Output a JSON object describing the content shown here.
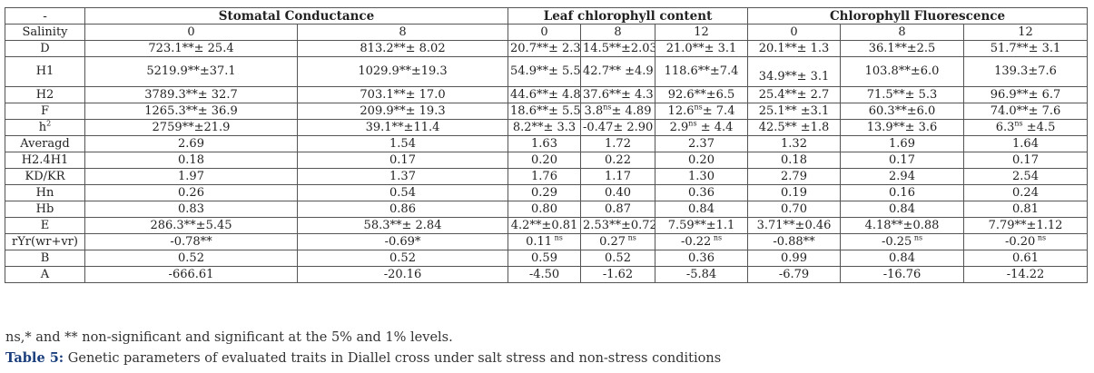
{
  "table": {
    "corner": "-",
    "groups": [
      "Stomatal Conductance",
      "Leaf chlorophyll content",
      "Chlorophyll Fluorescence"
    ],
    "salinity_label": "Salinity",
    "salinity_levels": [
      "0",
      "8",
      "0",
      "8",
      "12",
      "0",
      "8",
      "12"
    ],
    "rows": [
      {
        "label": "D",
        "cells": [
          {
            "v": "723.1**± 25.4"
          },
          {
            "v": "813.2**± 8.02"
          },
          {
            "v": "20.7**± 2.3"
          },
          {
            "v": "14.5**±2.03"
          },
          {
            "v": "21.0**± 3.1"
          },
          {
            "v": "20.1**± 1.3"
          },
          {
            "v": "36.1**±2.5"
          },
          {
            "v": "51.7**± 3.1"
          }
        ]
      },
      {
        "label": "H1",
        "tall": true,
        "cells": [
          {
            "v": "5219.9**±37.1"
          },
          {
            "v": "1029.9**±19.3"
          },
          {
            "v": "54.9**± 5.5"
          },
          {
            "v": "42.7** ±4.9"
          },
          {
            "v": "118.6**±7.4"
          },
          {
            "v": "34.9**± 3.1",
            "low": true
          },
          {
            "v": "103.8**±6.0"
          },
          {
            "v": "139.3±7.6"
          }
        ]
      },
      {
        "label": "H2",
        "cells": [
          {
            "v": "3789.3**± 32.7"
          },
          {
            "v": "703.1**± 17.0"
          },
          {
            "v": "44.6**± 4.8"
          },
          {
            "v": "37.6**± 4.3"
          },
          {
            "v": "92.6**±6.5"
          },
          {
            "v": "25.4**± 2.7"
          },
          {
            "v": "71.5**± 5.3"
          },
          {
            "v": "96.9**± 6.7"
          }
        ]
      },
      {
        "label": "F",
        "cells": [
          {
            "v": "1265.3**± 36.9"
          },
          {
            "v": "209.9**± 19.3"
          },
          {
            "v": "18.6**± 5.5"
          },
          {
            "v": "3.8",
            "sup": "ns",
            "v2": "± 4.89"
          },
          {
            "v": "12.6",
            "sup": "ns",
            "v2": "± 7.4"
          },
          {
            "v": "25.1** ±3.1"
          },
          {
            "v": "60.3**±6.0"
          },
          {
            "v": "74.0**± 7.6"
          }
        ]
      },
      {
        "label": "h",
        "label_sup": "2",
        "cells": [
          {
            "v": "2759**±21.9"
          },
          {
            "v": "39.1**±11.4"
          },
          {
            "v": "8.2**± 3.3"
          },
          {
            "v": "-0.47± 2.90"
          },
          {
            "v": "2.9",
            "sup": "ns",
            "v2": " ± 4.4"
          },
          {
            "v": "42.5** ±1.8"
          },
          {
            "v": "13.9**± 3.6"
          },
          {
            "v": "6.3",
            "sup": "ns",
            "v2": " ±4.5"
          }
        ]
      },
      {
        "label": "Averagd",
        "cells": [
          {
            "v": "2.69"
          },
          {
            "v": "1.54"
          },
          {
            "v": "1.63"
          },
          {
            "v": "1.72"
          },
          {
            "v": "2.37"
          },
          {
            "v": "1.32"
          },
          {
            "v": "1.69"
          },
          {
            "v": "1.64"
          }
        ]
      },
      {
        "label": "H2.4H1",
        "cells": [
          {
            "v": "0.18"
          },
          {
            "v": "0.17"
          },
          {
            "v": "0.20"
          },
          {
            "v": "0.22"
          },
          {
            "v": "0.20"
          },
          {
            "v": "0.18"
          },
          {
            "v": "0.17"
          },
          {
            "v": "0.17"
          }
        ]
      },
      {
        "label": "KD/KR",
        "cells": [
          {
            "v": "1.97"
          },
          {
            "v": "1.37"
          },
          {
            "v": "1.76"
          },
          {
            "v": "1.17"
          },
          {
            "v": "1.30"
          },
          {
            "v": "2.79"
          },
          {
            "v": "2.94"
          },
          {
            "v": "2.54"
          }
        ]
      },
      {
        "label": "Hn",
        "cells": [
          {
            "v": "0.26"
          },
          {
            "v": "0.54"
          },
          {
            "v": "0.29"
          },
          {
            "v": "0.40"
          },
          {
            "v": "0.36"
          },
          {
            "v": "0.19"
          },
          {
            "v": "0.16"
          },
          {
            "v": "0.24"
          }
        ]
      },
      {
        "label": "Hb",
        "cells": [
          {
            "v": "0.83"
          },
          {
            "v": "0.86"
          },
          {
            "v": "0.80"
          },
          {
            "v": "0.87"
          },
          {
            "v": "0.84"
          },
          {
            "v": "0.70"
          },
          {
            "v": "0.84"
          },
          {
            "v": "0.81"
          }
        ]
      },
      {
        "label": "E",
        "cells": [
          {
            "v": "286.3**±5.45"
          },
          {
            "v": "58.3**± 2.84"
          },
          {
            "v": "4.2**±0.81"
          },
          {
            "v": "2.53**±0.72"
          },
          {
            "v": "7.59**±1.1"
          },
          {
            "v": "3.71**±0.46"
          },
          {
            "v": "4.18**±0.88"
          },
          {
            "v": "7.79**±1.12"
          }
        ]
      },
      {
        "label": "rYr(wr+vr)",
        "cells": [
          {
            "v": "-0.78**"
          },
          {
            "v": "-0.69*"
          },
          {
            "v": "0.11",
            "sup": " ns"
          },
          {
            "v": "0.27",
            "sup": " ns"
          },
          {
            "v": "-0.22",
            "sup": " ns"
          },
          {
            "v": "-0.88**"
          },
          {
            "v": "-0.25",
            "sup": " ns"
          },
          {
            "v": "-0.20",
            "sup": " ns"
          }
        ]
      },
      {
        "label": "B",
        "cells": [
          {
            "v": "0.52"
          },
          {
            "v": "0.52"
          },
          {
            "v": "0.59"
          },
          {
            "v": "0.52"
          },
          {
            "v": "0.36"
          },
          {
            "v": "0.99"
          },
          {
            "v": "0.84"
          },
          {
            "v": "0.61"
          }
        ]
      },
      {
        "label": "A",
        "cells": [
          {
            "v": "-666.61"
          },
          {
            "v": "-20.16"
          },
          {
            "v": "-4.50"
          },
          {
            "v": "-1.62"
          },
          {
            "v": "-5.84"
          },
          {
            "v": "-6.79"
          },
          {
            "v": "-16.76"
          },
          {
            "v": "-14.22"
          }
        ]
      }
    ]
  },
  "footnote": "ns,* and ** non-significant and significant at the 5% and 1% levels.",
  "caption": {
    "label": "Table 5:",
    "text": " Genetic parameters of evaluated traits in Diallel cross under salt stress and non-stress conditions"
  },
  "colors": {
    "caption_label": "#1a3d7c",
    "border": "#555555"
  }
}
